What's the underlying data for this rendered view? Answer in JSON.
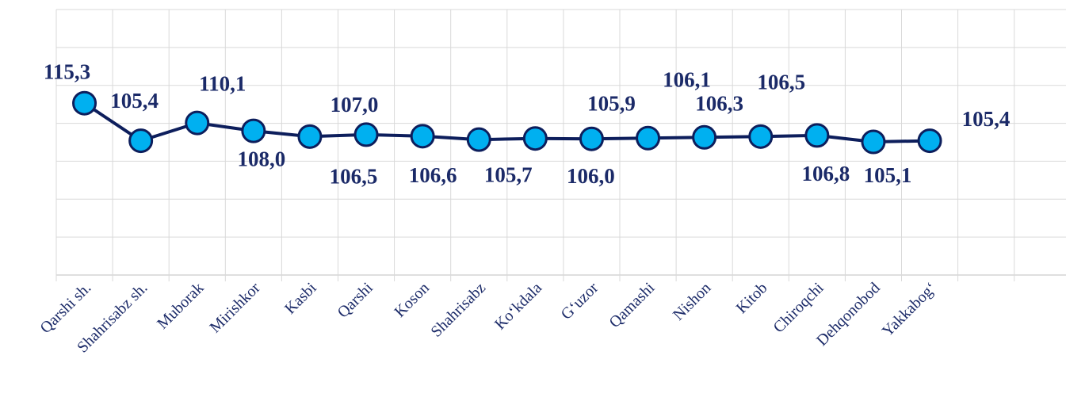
{
  "chart_data": {
    "type": "line",
    "categories": [
      "Qarshi sh.",
      "Shahrisabz sh.",
      "Muborak",
      "Mirishkor",
      "Kasbi",
      "Qarshi",
      "Koson",
      "Shahrisabz",
      "Ko‘kdala",
      "G‘uzor",
      "Qamashi",
      "Nishon",
      "Kitob",
      "Chiroqchi",
      "Dehqonobod",
      "Yakkabog‘"
    ],
    "series": [
      {
        "color": "#0d1e5c",
        "marker_color": "#00b0f0",
        "values": [
          115.3,
          105.4,
          110.1,
          108.0,
          106.5,
          107.0,
          106.6,
          105.7,
          106.0,
          105.9,
          106.1,
          106.3,
          106.5,
          106.8,
          105.1,
          105.4
        ],
        "value_labels": [
          "115,3",
          "105,4",
          "110,1",
          "108,0",
          "106,5",
          "107,0",
          "106,6",
          "105,7",
          "106,0",
          "105,9",
          "106,1",
          "106,3",
          "106,5",
          "106,8",
          "105,1",
          "105,4"
        ]
      }
    ],
    "ylim": [
      70,
      140
    ],
    "yticks": [
      70,
      80,
      90,
      100,
      110,
      120,
      130,
      140
    ],
    "grid": true
  }
}
